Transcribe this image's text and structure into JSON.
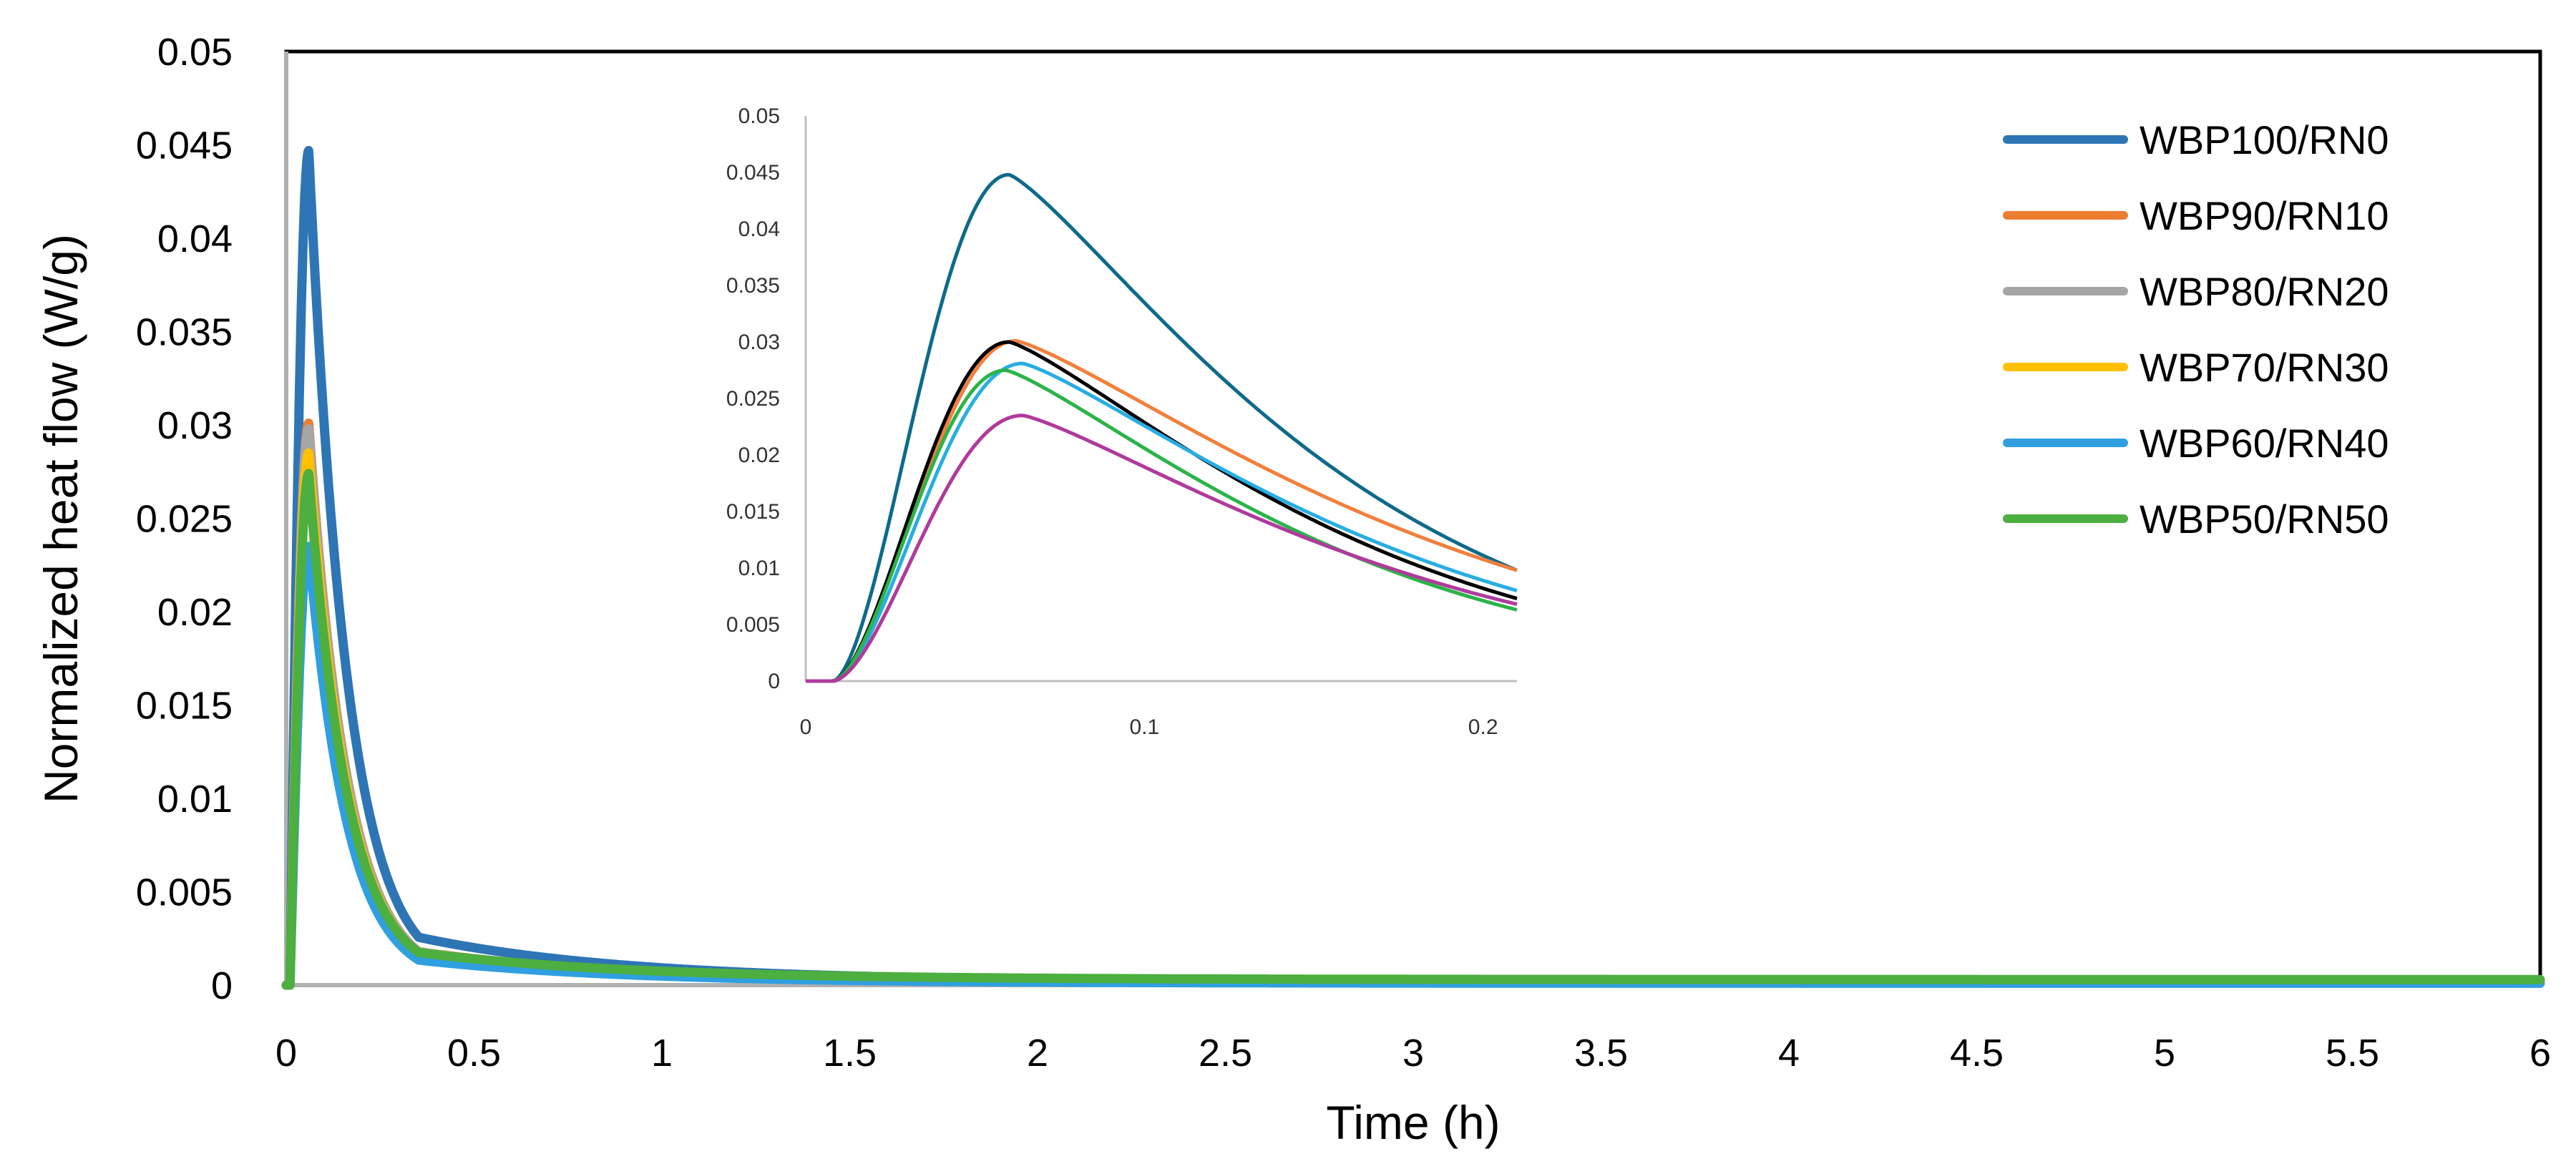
{
  "chart_data": [
    {
      "type": "line",
      "role": "main",
      "xlabel": "Time (h)",
      "ylabel": "Normalized heat flow (W/g)",
      "xlim": [
        0,
        6
      ],
      "ylim": [
        0,
        0.05
      ],
      "x_ticks": [
        "0",
        "0.5",
        "1",
        "1.5",
        "2",
        "2.5",
        "3",
        "3.5",
        "4",
        "4.5",
        "5",
        "5.5",
        "6"
      ],
      "y_ticks": [
        "0",
        "0.005",
        "0.01",
        "0.015",
        "0.02",
        "0.025",
        "0.03",
        "0.035",
        "0.04",
        "0.045",
        "0.05"
      ],
      "legend_position": "top-right",
      "series": [
        {
          "name": "WBP100/RN0",
          "color": "#2E75B6",
          "peak_x": 0.06,
          "peak_y": 0.0447,
          "tail_y": 0.0002
        },
        {
          "name": "WBP90/RN10",
          "color": "#ED7D31",
          "peak_x": 0.06,
          "peak_y": 0.0301,
          "tail_y": 0.0002
        },
        {
          "name": "WBP80/RN20",
          "color": "#A5A5A5",
          "peak_x": 0.06,
          "peak_y": 0.0298,
          "tail_y": 0.0002
        },
        {
          "name": "WBP70/RN30",
          "color": "#FFC000",
          "peak_x": 0.06,
          "peak_y": 0.0285,
          "tail_y": 0.0002
        },
        {
          "name": "WBP60/RN40",
          "color": "#2F9FE0",
          "peak_x": 0.06,
          "peak_y": 0.0235,
          "tail_y": 0.0001
        },
        {
          "name": "WBP50/RN50",
          "color": "#4CAF3F",
          "peak_x": 0.06,
          "peak_y": 0.0274,
          "tail_y": 0.0003
        }
      ]
    },
    {
      "type": "line",
      "role": "inset",
      "xlim": [
        0,
        0.21
      ],
      "ylim": [
        0,
        0.05
      ],
      "x_ticks": [
        "0",
        "0.1",
        "0.2"
      ],
      "y_ticks": [
        "0",
        "0.005",
        "0.01",
        "0.015",
        "0.02",
        "0.025",
        "0.03",
        "0.035",
        "0.04",
        "0.045",
        "0.05"
      ],
      "series": [
        {
          "color": "#0E6A8A",
          "peak_x": 0.06,
          "peak_y": 0.0448,
          "end_y": 0.0098
        },
        {
          "color": "#F0803C",
          "peak_x": 0.062,
          "peak_y": 0.0301,
          "end_y": 0.0098
        },
        {
          "color": "#000000",
          "peak_x": 0.06,
          "peak_y": 0.03,
          "end_y": 0.0073
        },
        {
          "color": "#27AEE3",
          "peak_x": 0.064,
          "peak_y": 0.0281,
          "end_y": 0.008
        },
        {
          "color": "#2CB34A",
          "peak_x": 0.059,
          "peak_y": 0.0275,
          "end_y": 0.0063
        },
        {
          "color": "#B03A9C",
          "peak_x": 0.064,
          "peak_y": 0.0235,
          "end_y": 0.0068
        }
      ]
    }
  ]
}
